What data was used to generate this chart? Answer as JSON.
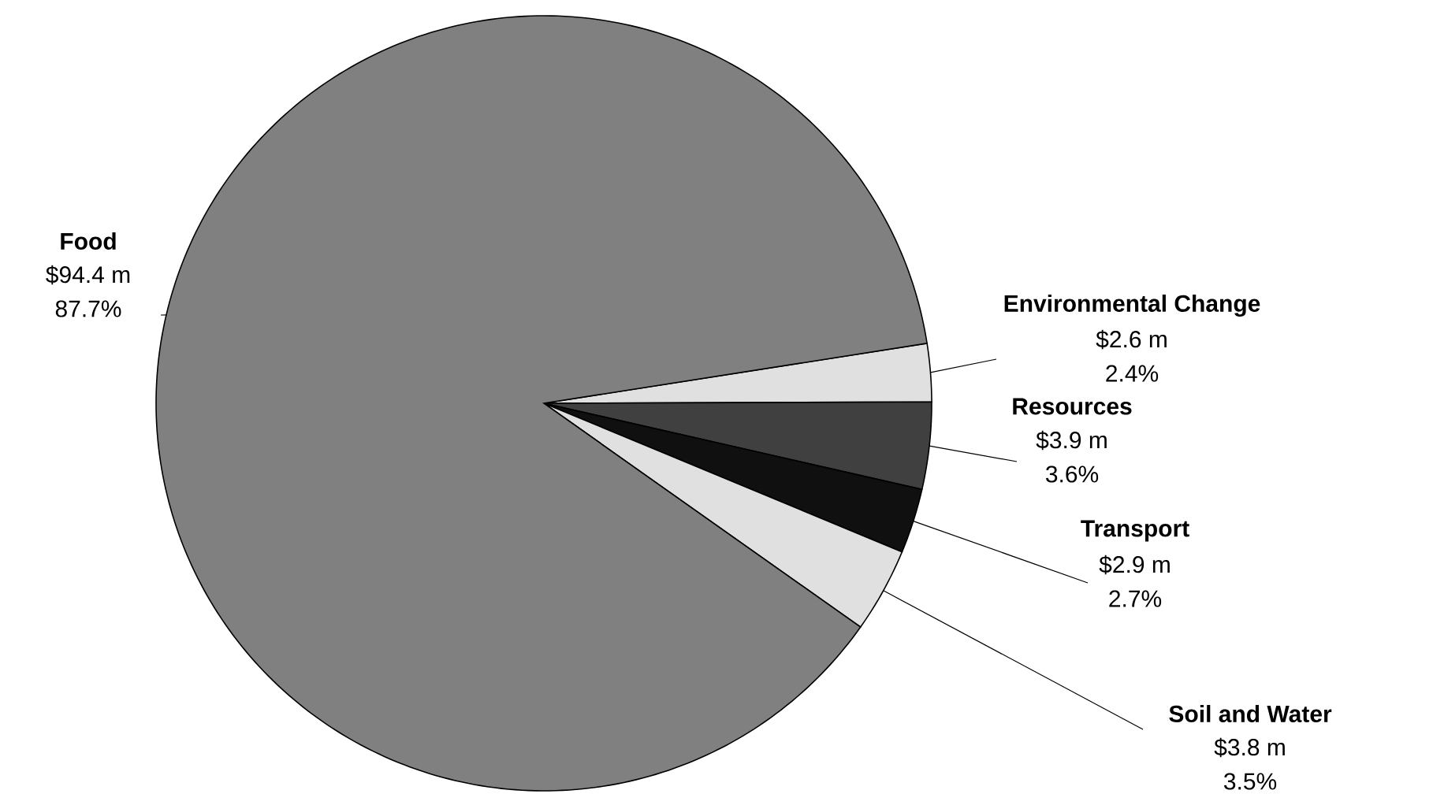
{
  "chart_data": {
    "type": "pie",
    "categories": [
      "Environmental Change",
      "Resources",
      "Transport",
      "Soil and Water",
      "Food"
    ],
    "values": [
      2.6,
      3.9,
      2.9,
      3.8,
      94.4
    ],
    "colors": [
      "#e0e0e0",
      "#404040",
      "#101010",
      "#e0e0e0",
      "#808080"
    ],
    "value_labels": [
      "$2.6 m",
      "$3.9 m",
      "$2.9 m",
      "$3.8 m",
      "$94.4 m"
    ],
    "annotations": [
      "2.4%",
      "3.6%",
      "2.7%",
      "3.5%",
      "87.7%"
    ]
  }
}
